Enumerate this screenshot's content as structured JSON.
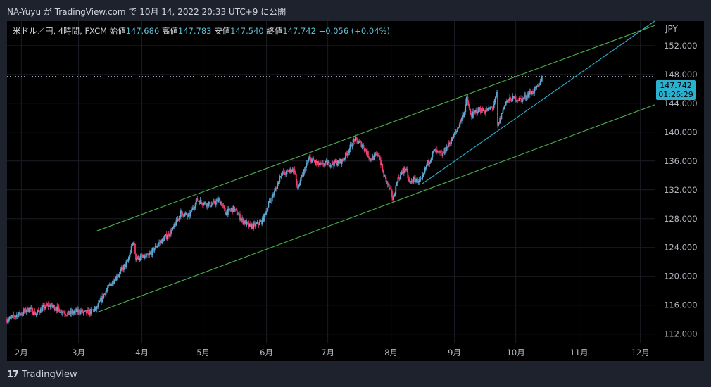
{
  "header": {
    "publish_line": "NA-Yuyu が TradingView.com で 10月 14, 2022 20:33 UTC+9 に公開"
  },
  "legend": {
    "symbol": "米ドル／円, 4時間, FXCM",
    "open_label": "始値",
    "open_value": "147.686",
    "high_label": "高値",
    "high_value": "147.783",
    "low_label": "安値",
    "low_value": "147.540",
    "close_label": "終値",
    "close_value": "147.742",
    "change": "+0.056 (+0.04%)"
  },
  "price_tag": {
    "price": "147.742",
    "countdown": "01:26:29"
  },
  "footer": {
    "brand": "TradingView",
    "logo": "17"
  },
  "colors": {
    "up": "#5fa8d3",
    "down": "#f23a6e",
    "channel": "#4caf50",
    "trendline": "#2ab1cf",
    "grid": "#1a1d24",
    "axis_text": "#b2b5be",
    "background": "#000000"
  },
  "chart_data": {
    "type": "candlestick",
    "title": "",
    "xlabel": "",
    "ylabel": "",
    "currency": "JPY",
    "ylim": [
      110.8,
      155.4
    ],
    "y_ticks": [
      "152.000",
      "148.000",
      "144.000",
      "140.000",
      "136.000",
      "132.000",
      "128.000",
      "124.000",
      "120.000",
      "116.000",
      "112.000"
    ],
    "y_tick_values": [
      152,
      148,
      144,
      140,
      136,
      132,
      128,
      124,
      120,
      116,
      112
    ],
    "x_ticks": [
      "2月",
      "3月",
      "4月",
      "5月",
      "6月",
      "7月",
      "8月",
      "9月",
      "10月",
      "11月",
      "12月"
    ],
    "x_tick_dates": [
      "2022-02-01",
      "2022-03-01",
      "2022-04-01",
      "2022-05-01",
      "2022-06-01",
      "2022-07-01",
      "2022-08-01",
      "2022-09-01",
      "2022-10-01",
      "2022-11-01",
      "2022-12-01"
    ],
    "x_range": [
      "2022-01-25",
      "2022-12-08"
    ],
    "last_price": 147.742,
    "price_path": [
      [
        "2022-01-25",
        114.0
      ],
      [
        "2022-02-01",
        114.9
      ],
      [
        "2022-02-05",
        115.5
      ],
      [
        "2022-02-08",
        114.8
      ],
      [
        "2022-02-12",
        115.7
      ],
      [
        "2022-02-15",
        116.0
      ],
      [
        "2022-02-20",
        115.3
      ],
      [
        "2022-02-24",
        114.8
      ],
      [
        "2022-03-01",
        115.2
      ],
      [
        "2022-03-04",
        114.9
      ],
      [
        "2022-03-07",
        115.1
      ],
      [
        "2022-03-10",
        115.6
      ],
      [
        "2022-03-14",
        117.8
      ],
      [
        "2022-03-18",
        119.4
      ],
      [
        "2022-03-22",
        120.8
      ],
      [
        "2022-03-25",
        122.0
      ],
      [
        "2022-03-28",
        125.0
      ],
      [
        "2022-03-29",
        122.5
      ],
      [
        "2022-04-04",
        122.7
      ],
      [
        "2022-04-08",
        124.2
      ],
      [
        "2022-04-12",
        125.3
      ],
      [
        "2022-04-16",
        126.4
      ],
      [
        "2022-04-20",
        128.8
      ],
      [
        "2022-04-24",
        128.3
      ],
      [
        "2022-04-28",
        130.6
      ],
      [
        "2022-05-01",
        130.2
      ],
      [
        "2022-05-05",
        129.9
      ],
      [
        "2022-05-09",
        130.6
      ],
      [
        "2022-05-12",
        128.8
      ],
      [
        "2022-05-16",
        129.4
      ],
      [
        "2022-05-20",
        127.8
      ],
      [
        "2022-05-24",
        126.9
      ],
      [
        "2022-05-27",
        127.1
      ],
      [
        "2022-05-30",
        127.7
      ],
      [
        "2022-06-02",
        130.0
      ],
      [
        "2022-06-06",
        132.4
      ],
      [
        "2022-06-08",
        134.3
      ],
      [
        "2022-06-10",
        134.2
      ],
      [
        "2022-06-13",
        134.8
      ],
      [
        "2022-06-15",
        134.6
      ],
      [
        "2022-06-16",
        132.0
      ],
      [
        "2022-06-20",
        135.0
      ],
      [
        "2022-06-22",
        136.4
      ],
      [
        "2022-06-27",
        135.4
      ],
      [
        "2022-06-30",
        135.6
      ],
      [
        "2022-07-04",
        135.7
      ],
      [
        "2022-07-08",
        136.0
      ],
      [
        "2022-07-11",
        137.4
      ],
      [
        "2022-07-14",
        139.0
      ],
      [
        "2022-07-18",
        138.2
      ],
      [
        "2022-07-22",
        136.2
      ],
      [
        "2022-07-26",
        137.0
      ],
      [
        "2022-07-28",
        134.3
      ],
      [
        "2022-08-01",
        131.6
      ],
      [
        "2022-08-02",
        130.6
      ],
      [
        "2022-08-04",
        133.4
      ],
      [
        "2022-08-08",
        135.0
      ],
      [
        "2022-08-10",
        132.9
      ],
      [
        "2022-08-12",
        133.4
      ],
      [
        "2022-08-16",
        133.2
      ],
      [
        "2022-08-18",
        135.1
      ],
      [
        "2022-08-22",
        137.4
      ],
      [
        "2022-08-26",
        136.8
      ],
      [
        "2022-08-30",
        138.7
      ],
      [
        "2022-09-02",
        140.2
      ],
      [
        "2022-09-06",
        143.0
      ],
      [
        "2022-09-07",
        144.8
      ],
      [
        "2022-09-09",
        142.2
      ],
      [
        "2022-09-13",
        143.2
      ],
      [
        "2022-09-16",
        142.9
      ],
      [
        "2022-09-20",
        143.5
      ],
      [
        "2022-09-22",
        145.5
      ],
      [
        "2022-09-22",
        140.6
      ],
      [
        "2022-09-26",
        144.2
      ],
      [
        "2022-09-30",
        144.7
      ],
      [
        "2022-10-04",
        144.5
      ],
      [
        "2022-10-07",
        145.3
      ],
      [
        "2022-10-10",
        145.7
      ],
      [
        "2022-10-12",
        146.3
      ],
      [
        "2022-10-14",
        147.74
      ]
    ],
    "channel_upper": [
      [
        "2022-03-10",
        126.3
      ],
      [
        "2022-12-08",
        154.8
      ]
    ],
    "channel_lower": [
      [
        "2022-03-10",
        115.0
      ],
      [
        "2022-12-08",
        143.8
      ]
    ],
    "trendline": [
      [
        "2022-08-16",
        132.8
      ],
      [
        "2022-12-08",
        155.4
      ]
    ]
  }
}
